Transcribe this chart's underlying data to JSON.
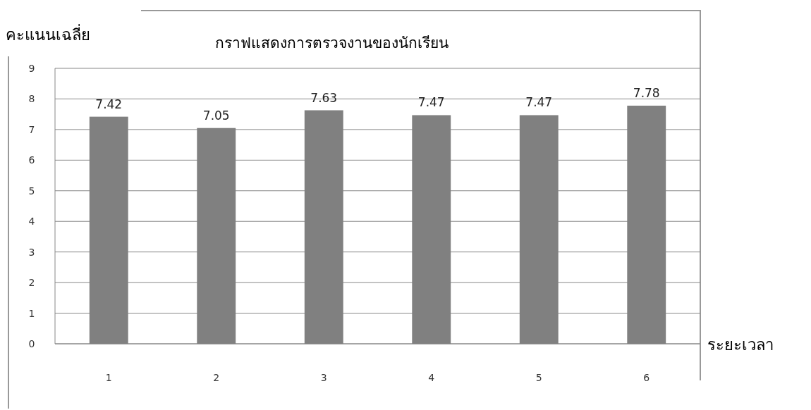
{
  "chart_data": {
    "type": "bar",
    "title": "กราฟแสดงการตรวจงานของนักเรียน",
    "ylabel": "คะแนนเฉลี่ย",
    "xlabel": "ระยะเวลา",
    "categories": [
      "1",
      "2",
      "3",
      "4",
      "5",
      "6"
    ],
    "values": [
      7.42,
      7.05,
      7.63,
      7.47,
      7.47,
      7.78
    ],
    "color": "#808080",
    "ylim": [
      0,
      9
    ],
    "yticks": [
      0,
      1,
      2,
      3,
      4,
      5,
      6,
      7,
      8,
      9
    ],
    "grid": "y",
    "data_labels": true
  }
}
